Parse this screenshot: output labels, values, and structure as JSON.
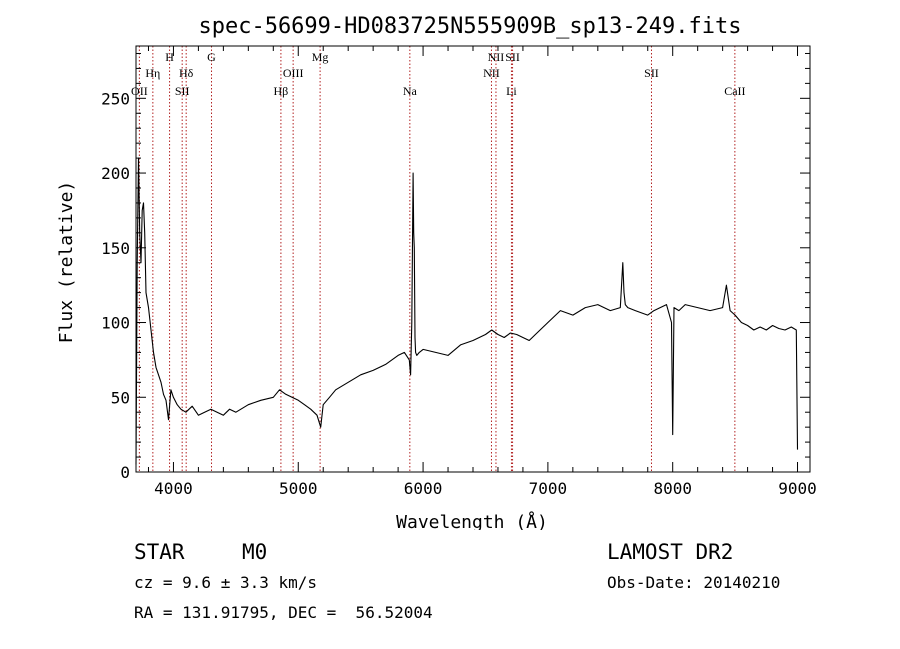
{
  "chart_data": {
    "type": "line",
    "title": "spec-56699-HD083725N555909B_sp13-249.fits",
    "xlabel": "Wavelength (Å)",
    "ylabel": "Flux (relative)",
    "xlim": [
      3700,
      9100
    ],
    "ylim": [
      0,
      285
    ],
    "xticks": [
      4000,
      5000,
      6000,
      7000,
      8000,
      9000
    ],
    "yticks": [
      0,
      50,
      100,
      150,
      200,
      250
    ],
    "grid": false,
    "line_color": "#000000",
    "marker_color": "#b22222",
    "series": [
      {
        "x": [
          3700,
          3710,
          3720,
          3730,
          3740,
          3750,
          3760,
          3770,
          3780,
          3800,
          3820,
          3840,
          3860,
          3880,
          3900,
          3920,
          3940,
          3960,
          3980,
          4000,
          4030,
          4060,
          4100,
          4150,
          4200,
          4250,
          4300,
          4350,
          4400,
          4450,
          4500,
          4600,
          4700,
          4800,
          4850,
          4900,
          4950,
          5000,
          5050,
          5100,
          5150,
          5180,
          5200,
          5250,
          5300,
          5400,
          5500,
          5600,
          5700,
          5800,
          5850,
          5890,
          5900,
          5910,
          5920,
          5925,
          5930,
          5935,
          5940,
          5950,
          5970,
          6000,
          6100,
          6200,
          6300,
          6400,
          6500,
          6550,
          6600,
          6650,
          6700,
          6750,
          6800,
          6850,
          6900,
          7000,
          7100,
          7200,
          7300,
          7400,
          7500,
          7580,
          7600,
          7610,
          7620,
          7640,
          7700,
          7800,
          7850,
          7900,
          7950,
          7990,
          8000,
          8010,
          8050,
          8100,
          8200,
          8300,
          8400,
          8430,
          8460,
          8500,
          8550,
          8600,
          8650,
          8700,
          8750,
          8800,
          8850,
          8900,
          8950,
          8990,
          9000
        ],
        "y": [
          5,
          140,
          210,
          160,
          140,
          175,
          180,
          160,
          120,
          110,
          95,
          80,
          70,
          65,
          60,
          52,
          48,
          35,
          55,
          50,
          45,
          42,
          40,
          44,
          38,
          40,
          42,
          40,
          38,
          42,
          40,
          45,
          48,
          50,
          55,
          52,
          50,
          48,
          45,
          42,
          38,
          30,
          45,
          50,
          55,
          60,
          65,
          68,
          72,
          78,
          80,
          75,
          65,
          100,
          200,
          160,
          150,
          90,
          80,
          78,
          80,
          82,
          80,
          78,
          85,
          88,
          92,
          95,
          92,
          90,
          93,
          92,
          90,
          88,
          92,
          100,
          108,
          105,
          110,
          112,
          108,
          110,
          140,
          120,
          112,
          110,
          108,
          105,
          108,
          110,
          112,
          100,
          25,
          110,
          108,
          112,
          110,
          108,
          110,
          125,
          108,
          105,
          100,
          98,
          95,
          97,
          95,
          98,
          96,
          95,
          97,
          95,
          15
        ]
      }
    ],
    "line_markers": [
      {
        "label": "OII",
        "x": 3727,
        "row": 3
      },
      {
        "label": "Hη",
        "x": 3835,
        "row": 2
      },
      {
        "label": "H",
        "x": 3969,
        "row": 1
      },
      {
        "label": "Hδ",
        "x": 4102,
        "row": 2
      },
      {
        "label": "SII",
        "x": 4070,
        "row": 3
      },
      {
        "label": "G",
        "x": 4305,
        "row": 1
      },
      {
        "label": "Hβ",
        "x": 4861,
        "row": 3
      },
      {
        "label": "OIII",
        "x": 4959,
        "row": 2
      },
      {
        "label": "Mg",
        "x": 5175,
        "row": 1
      },
      {
        "label": "Na",
        "x": 5894,
        "row": 3
      },
      {
        "label": "NII",
        "x": 6548,
        "row": 2
      },
      {
        "label": "NII",
        "x": 6584,
        "row": 1
      },
      {
        "label": "SII",
        "x": 6717,
        "row": 1
      },
      {
        "label": "Li",
        "x": 6708,
        "row": 3
      },
      {
        "label": "SII",
        "x": 7830,
        "row": 2
      },
      {
        "label": "CaII",
        "x": 8498,
        "row": 3
      }
    ]
  },
  "footer": {
    "object_class": "STAR",
    "subclass": "M0",
    "redshift": "cz = 9.6 ± 3.3 km/s",
    "coords": "RA = 131.91795, DEC =  56.52004",
    "survey": "LAMOST DR2",
    "obs_date": "Obs-Date: 20140210"
  }
}
